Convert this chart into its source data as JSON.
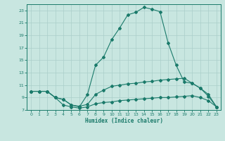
{
  "title": "",
  "xlabel": "Humidex (Indice chaleur)",
  "background_color": "#c8e6e0",
  "line_color": "#1a7a6a",
  "grid_color": "#aacfca",
  "xlim": [
    -0.5,
    23.5
  ],
  "ylim": [
    7,
    24
  ],
  "xticks": [
    0,
    1,
    2,
    3,
    4,
    5,
    6,
    7,
    8,
    9,
    10,
    11,
    12,
    13,
    14,
    15,
    16,
    17,
    18,
    19,
    20,
    21,
    22,
    23
  ],
  "yticks": [
    7,
    9,
    11,
    13,
    15,
    17,
    19,
    21,
    23
  ],
  "line1_x": [
    0,
    1,
    2,
    3,
    4,
    5,
    6,
    7,
    8,
    9,
    10,
    11,
    12,
    13,
    14,
    15,
    16,
    17,
    18,
    19,
    20,
    21,
    22,
    23
  ],
  "line1_y": [
    10.0,
    10.0,
    10.0,
    9.0,
    7.8,
    7.5,
    7.3,
    7.5,
    8.0,
    8.2,
    8.3,
    8.5,
    8.6,
    8.7,
    8.8,
    8.9,
    9.0,
    9.0,
    9.1,
    9.2,
    9.3,
    9.0,
    8.5,
    7.5
  ],
  "line2_x": [
    0,
    1,
    2,
    3,
    4,
    5,
    6,
    7,
    8,
    9,
    10,
    11,
    12,
    13,
    14,
    15,
    16,
    17,
    18,
    19,
    20,
    21,
    22,
    23
  ],
  "line2_y": [
    10.0,
    10.0,
    10.0,
    9.0,
    8.7,
    7.8,
    7.6,
    7.9,
    9.5,
    10.2,
    10.8,
    11.0,
    11.2,
    11.3,
    11.5,
    11.6,
    11.8,
    11.9,
    12.0,
    12.1,
    11.3,
    10.5,
    9.5,
    7.5
  ],
  "line3_x": [
    0,
    1,
    2,
    3,
    4,
    5,
    6,
    7,
    8,
    9,
    10,
    11,
    12,
    13,
    14,
    15,
    16,
    17,
    18,
    19,
    20,
    21,
    22,
    23
  ],
  "line3_y": [
    10.0,
    10.0,
    10.0,
    9.0,
    8.7,
    7.8,
    7.5,
    9.5,
    14.2,
    15.5,
    18.3,
    20.2,
    22.3,
    22.7,
    23.5,
    23.2,
    22.8,
    17.8,
    14.2,
    11.5,
    11.3,
    10.5,
    9.2,
    7.5
  ]
}
